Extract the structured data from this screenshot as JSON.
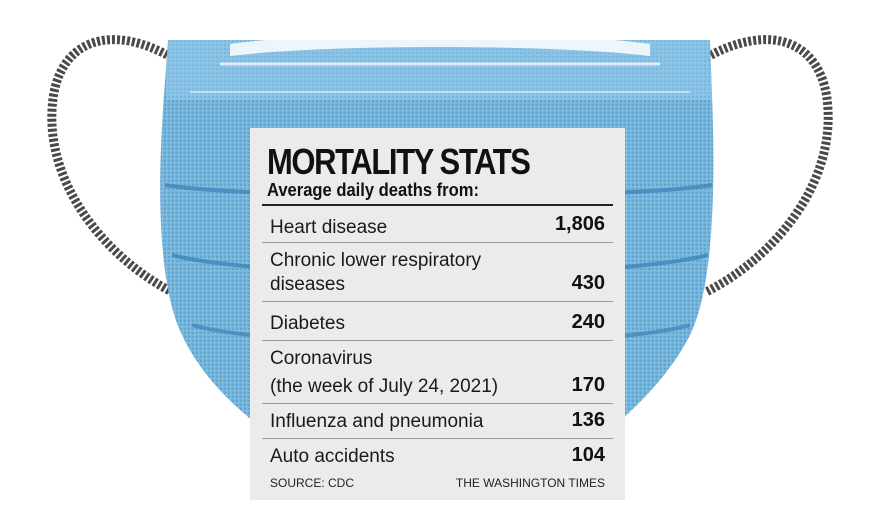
{
  "chart_data": {
    "type": "table",
    "title": "MORTALITY STATS",
    "subtitle": "Average daily deaths from:",
    "rows": [
      {
        "label": "Heart disease",
        "value": "1,806"
      },
      {
        "label": "Chronic lower respiratory diseases",
        "value": "430"
      },
      {
        "label": "Diabetes",
        "value": "240"
      },
      {
        "label": "Coronavirus",
        "note": "(the week of July 24, 2021)",
        "value": "170"
      },
      {
        "label": "Influenza and pneumonia",
        "value": "136"
      },
      {
        "label": "Auto accidents",
        "value": "104"
      }
    ],
    "source": "SOURCE: CDC",
    "publisher": "THE WASHINGTON TIMES"
  },
  "illustration": {
    "mask_color": "#6fb3dc",
    "pleat_color": "#4f95c6",
    "strap_color": "#555555",
    "card_color": "#ebebeb"
  }
}
